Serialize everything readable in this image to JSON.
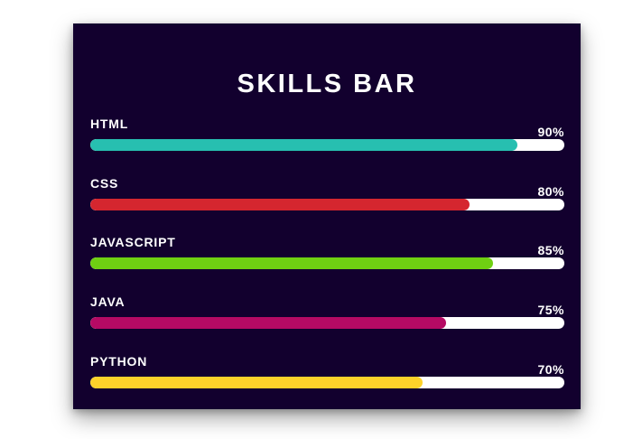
{
  "title": "SKILLS BAR",
  "skills": [
    {
      "name": "HTML",
      "percent_label": "90%",
      "level": 0.9,
      "color": "#27bfb0"
    },
    {
      "name": "CSS",
      "percent_label": "80%",
      "level": 0.8,
      "color": "#d5262f"
    },
    {
      "name": "JAVASCRIPT",
      "percent_label": "85%",
      "level": 0.85,
      "color": "#6fd012"
    },
    {
      "name": "JAVA",
      "percent_label": "75%",
      "level": 0.75,
      "color": "#b50a64"
    },
    {
      "name": "PYTHON",
      "percent_label": "70%",
      "level": 0.7,
      "color": "#fdd22a"
    }
  ]
}
